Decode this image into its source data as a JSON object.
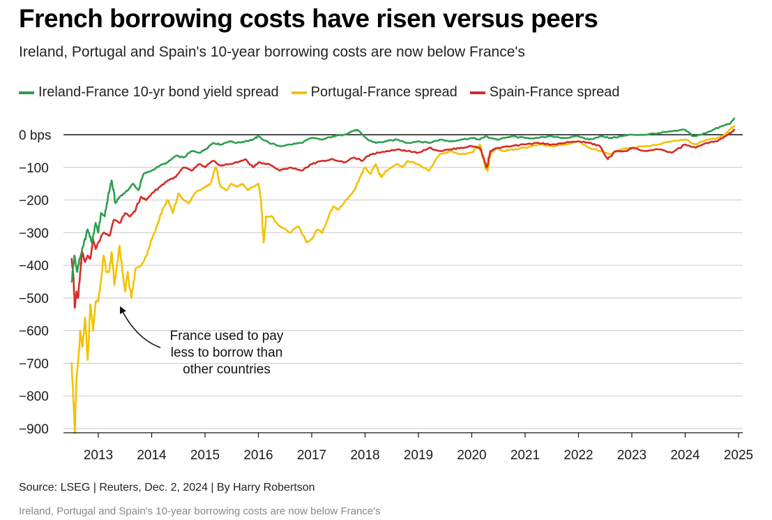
{
  "title": "French borrowing costs have risen versus peers",
  "subtitle": "Ireland, Portugal and Spain's 10-year borrowing costs are now below France's",
  "source": "Source: LSEG | Reuters, Dec. 2, 2024 | By Harry Robertson",
  "footnote": "Ireland, Portugal and Spain's 10-year borrowing costs are now below France's",
  "chart_data": {
    "type": "line",
    "title": "French borrowing costs have risen versus peers",
    "subtitle": "Ireland, Portugal and Spain's 10-year borrowing costs are now below France's",
    "xlabel": "",
    "ylabel": "",
    "ylim": [
      -900,
      0
    ],
    "xlim": [
      2012.5,
      2025.0
    ],
    "grid": true,
    "legend_position": "top-left",
    "y_ticks": [
      0,
      -100,
      -200,
      -300,
      -400,
      -500,
      -600,
      -700,
      -800,
      -900
    ],
    "y_tick_labels": [
      "0 bps",
      "−100",
      "−200",
      "−300",
      "−400",
      "−500",
      "−600",
      "−700",
      "−800",
      "−900"
    ],
    "x_ticks": [
      2013,
      2014,
      2015,
      2016,
      2017,
      2018,
      2019,
      2020,
      2021,
      2022,
      2023,
      2024,
      2025
    ],
    "x_tick_labels": [
      "2013",
      "2014",
      "2015",
      "2016",
      "2017",
      "2018",
      "2019",
      "2020",
      "2021",
      "2022",
      "2023",
      "2024",
      "2025"
    ],
    "annotation": {
      "lines": [
        "France used to pay",
        "less to borrow than",
        "other countries"
      ],
      "points_to": {
        "x": 2013.35,
        "y": -550
      }
    },
    "series": [
      {
        "name": "Ireland-France 10-yr bond yield spread",
        "color": "#2e9e4f",
        "x": [
          2012.5,
          2012.55,
          2012.6,
          2012.65,
          2012.72,
          2012.8,
          2012.88,
          2012.95,
          2013.0,
          2013.05,
          2013.12,
          2013.18,
          2013.25,
          2013.32,
          2013.4,
          2013.48,
          2013.55,
          2013.65,
          2013.75,
          2013.85,
          2014.0,
          2014.15,
          2014.3,
          2014.45,
          2014.6,
          2014.75,
          2014.9,
          2015.0,
          2015.15,
          2015.3,
          2015.45,
          2015.6,
          2015.75,
          2015.9,
          2016.0,
          2016.2,
          2016.4,
          2016.6,
          2016.8,
          2017.0,
          2017.2,
          2017.4,
          2017.6,
          2017.75,
          2017.85,
          2017.95,
          2018.05,
          2018.2,
          2018.4,
          2018.6,
          2018.8,
          2019.0,
          2019.2,
          2019.4,
          2019.6,
          2019.8,
          2020.0,
          2020.15,
          2020.25,
          2020.35,
          2020.5,
          2020.75,
          2021.0,
          2021.25,
          2021.5,
          2021.75,
          2022.0,
          2022.2,
          2022.4,
          2022.6,
          2022.8,
          2023.0,
          2023.25,
          2023.5,
          2023.75,
          2024.0,
          2024.15,
          2024.3,
          2024.45,
          2024.6,
          2024.75,
          2024.85,
          2024.92
        ],
        "values": [
          -450,
          -370,
          -420,
          -380,
          -340,
          -290,
          -330,
          -270,
          -300,
          -240,
          -250,
          -190,
          -140,
          -210,
          -190,
          -180,
          -170,
          -150,
          -170,
          -120,
          -110,
          -95,
          -85,
          -65,
          -70,
          -50,
          -55,
          -45,
          -25,
          -30,
          -20,
          -25,
          -20,
          -15,
          -5,
          -25,
          -35,
          -30,
          -25,
          -10,
          -15,
          -5,
          0,
          10,
          15,
          0,
          -15,
          -25,
          -20,
          -15,
          -25,
          -20,
          -25,
          -15,
          -20,
          -15,
          -10,
          -15,
          -5,
          -10,
          -15,
          -5,
          -10,
          -10,
          -5,
          -10,
          -5,
          -15,
          -5,
          -10,
          -5,
          0,
          0,
          5,
          10,
          15,
          -5,
          0,
          10,
          20,
          30,
          35,
          50
        ]
      },
      {
        "name": "Portugal-France spread",
        "color": "#f2c200",
        "x": [
          2012.5,
          2012.53,
          2012.56,
          2012.59,
          2012.62,
          2012.66,
          2012.7,
          2012.75,
          2012.8,
          2012.85,
          2012.9,
          2012.95,
          2013.0,
          2013.05,
          2013.1,
          2013.15,
          2013.2,
          2013.25,
          2013.3,
          2013.35,
          2013.4,
          2013.45,
          2013.5,
          2013.55,
          2013.62,
          2013.7,
          2013.8,
          2013.9,
          2014.0,
          2014.1,
          2014.2,
          2014.3,
          2014.4,
          2014.5,
          2014.6,
          2014.7,
          2014.8,
          2014.9,
          2015.0,
          2015.1,
          2015.2,
          2015.3,
          2015.4,
          2015.5,
          2015.6,
          2015.7,
          2015.8,
          2015.9,
          2016.0,
          2016.05,
          2016.1,
          2016.15,
          2016.25,
          2016.4,
          2016.6,
          2016.75,
          2016.9,
          2017.0,
          2017.1,
          2017.2,
          2017.3,
          2017.4,
          2017.5,
          2017.6,
          2017.7,
          2017.8,
          2017.9,
          2018.0,
          2018.1,
          2018.2,
          2018.3,
          2018.4,
          2018.5,
          2018.6,
          2018.7,
          2018.8,
          2019.0,
          2019.2,
          2019.4,
          2019.6,
          2019.8,
          2020.0,
          2020.15,
          2020.25,
          2020.3,
          2020.35,
          2020.45,
          2020.6,
          2020.8,
          2021.0,
          2021.25,
          2021.5,
          2021.75,
          2022.0,
          2022.2,
          2022.4,
          2022.6,
          2022.8,
          2023.0,
          2023.25,
          2023.5,
          2023.75,
          2024.0,
          2024.2,
          2024.4,
          2024.6,
          2024.75,
          2024.85,
          2024.92
        ],
        "values": [
          -700,
          -800,
          -915,
          -750,
          -700,
          -600,
          -650,
          -560,
          -690,
          -520,
          -600,
          -510,
          -510,
          -450,
          -370,
          -420,
          -420,
          -360,
          -460,
          -400,
          -340,
          -420,
          -480,
          -420,
          -500,
          -410,
          -400,
          -370,
          -320,
          -280,
          -230,
          -200,
          -240,
          -180,
          -200,
          -210,
          -180,
          -170,
          -160,
          -150,
          -100,
          -160,
          -170,
          -150,
          -160,
          -150,
          -170,
          -160,
          -150,
          -200,
          -330,
          -250,
          -250,
          -280,
          -300,
          -280,
          -330,
          -320,
          -290,
          -300,
          -260,
          -220,
          -230,
          -210,
          -190,
          -170,
          -130,
          -100,
          -120,
          -90,
          -130,
          -110,
          -100,
          -90,
          -100,
          -80,
          -90,
          -110,
          -60,
          -50,
          -60,
          -55,
          -30,
          -100,
          -110,
          -60,
          -40,
          -50,
          -45,
          -40,
          -30,
          -35,
          -30,
          -20,
          -40,
          -50,
          -60,
          -45,
          -40,
          -35,
          -30,
          -20,
          -15,
          -30,
          -15,
          -10,
          0,
          20,
          25
        ]
      },
      {
        "name": "Spain-France spread",
        "color": "#d42c27",
        "x": [
          2012.5,
          2012.53,
          2012.56,
          2012.59,
          2012.62,
          2012.66,
          2012.7,
          2012.75,
          2012.8,
          2012.85,
          2012.9,
          2012.95,
          2013.0,
          2013.1,
          2013.2,
          2013.3,
          2013.4,
          2013.5,
          2013.6,
          2013.7,
          2013.8,
          2013.9,
          2014.0,
          2014.15,
          2014.3,
          2014.45,
          2014.6,
          2014.75,
          2014.9,
          2015.0,
          2015.15,
          2015.3,
          2015.45,
          2015.6,
          2015.75,
          2015.9,
          2016.0,
          2016.2,
          2016.4,
          2016.6,
          2016.8,
          2017.0,
          2017.2,
          2017.4,
          2017.6,
          2017.8,
          2017.95,
          2018.1,
          2018.25,
          2018.4,
          2018.6,
          2018.8,
          2019.0,
          2019.2,
          2019.4,
          2019.6,
          2019.8,
          2020.0,
          2020.15,
          2020.22,
          2020.28,
          2020.35,
          2020.5,
          2020.75,
          2021.0,
          2021.25,
          2021.5,
          2021.75,
          2022.0,
          2022.2,
          2022.4,
          2022.55,
          2022.7,
          2022.9,
          2023.0,
          2023.25,
          2023.5,
          2023.75,
          2024.0,
          2024.2,
          2024.4,
          2024.6,
          2024.75,
          2024.85,
          2024.92
        ],
        "values": [
          -380,
          -430,
          -530,
          -480,
          -500,
          -420,
          -360,
          -390,
          -370,
          -380,
          -320,
          -350,
          -330,
          -300,
          -310,
          -260,
          -270,
          -240,
          -250,
          -230,
          -190,
          -200,
          -180,
          -160,
          -140,
          -130,
          -100,
          -110,
          -90,
          -100,
          -80,
          -95,
          -90,
          -85,
          -75,
          -100,
          -85,
          -90,
          -110,
          -100,
          -110,
          -90,
          -80,
          -75,
          -85,
          -70,
          -80,
          -60,
          -55,
          -50,
          -45,
          -50,
          -55,
          -40,
          -50,
          -45,
          -40,
          -35,
          -40,
          -70,
          -100,
          -50,
          -40,
          -35,
          -30,
          -25,
          -30,
          -25,
          -20,
          -25,
          -35,
          -75,
          -50,
          -50,
          -40,
          -50,
          -45,
          -55,
          -30,
          -40,
          -25,
          -20,
          -5,
          5,
          15
        ]
      }
    ]
  }
}
